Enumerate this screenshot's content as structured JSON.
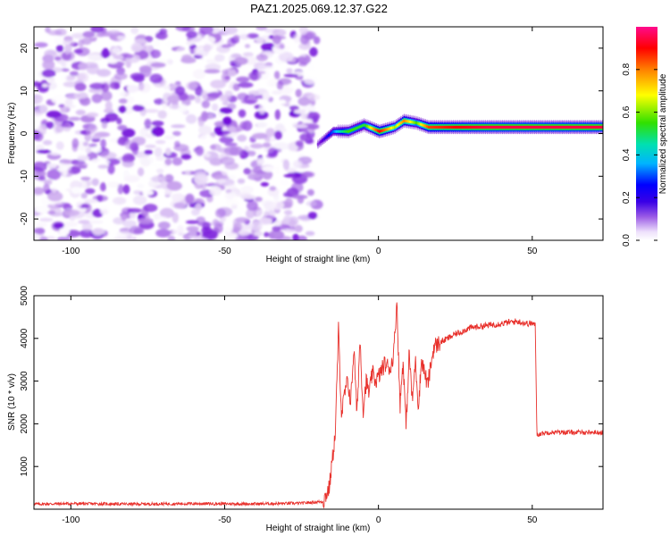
{
  "title": "PAZ1.2025.069.12.37.G22",
  "chart_data": [
    {
      "type": "heatmap",
      "xlabel": "Height of straight line (km)",
      "ylabel": "Frequency (Hz)",
      "xlim": [
        -112,
        73
      ],
      "ylim": [
        -25,
        25
      ],
      "xticks": [
        -100,
        -50,
        0,
        50
      ],
      "yticks": [
        -20,
        -10,
        0,
        10,
        20
      ],
      "colorbar": {
        "label": "Normalized spectral amplitude",
        "range": [
          0.0,
          1.0
        ],
        "ticks": [
          "0.0",
          "0.2",
          "0.4",
          "0.6",
          "0.8"
        ],
        "colormap": [
          "#ffffff",
          "#b07be6",
          "#6a00d8",
          "#0000ff",
          "#00c8ff",
          "#00e08a",
          "#38e000",
          "#ffff00",
          "#ff8000",
          "#ff0000",
          "#ff0080"
        ]
      },
      "noise_region": {
        "x": [
          -112,
          -20
        ],
        "frequency": [
          -25,
          25
        ],
        "amplitude": [
          0.0,
          0.2
        ]
      },
      "signal_ridge": [
        {
          "x": -20,
          "frequency": -2.5,
          "amplitude": 0.15
        },
        {
          "x": -15,
          "frequency": 0.5,
          "amplitude": 0.35
        },
        {
          "x": -10,
          "frequency": 0.5,
          "amplitude": 0.6
        },
        {
          "x": -5,
          "frequency": 2.0,
          "amplitude": 0.55
        },
        {
          "x": 0,
          "frequency": 0.5,
          "amplitude": 0.9
        },
        {
          "x": 5,
          "frequency": 1.5,
          "amplitude": 0.65
        },
        {
          "x": 8,
          "frequency": 3.0,
          "amplitude": 0.8
        },
        {
          "x": 12,
          "frequency": 2.5,
          "amplitude": 0.6
        },
        {
          "x": 16,
          "frequency": 1.5,
          "amplitude": 0.85
        },
        {
          "x": 25,
          "frequency": 1.5,
          "amplitude": 0.9
        },
        {
          "x": 35,
          "frequency": 1.5,
          "amplitude": 0.95
        },
        {
          "x": 45,
          "frequency": 1.5,
          "amplitude": 0.95
        },
        {
          "x": 51,
          "frequency": 1.5,
          "amplitude": 0.95
        },
        {
          "x": 73,
          "frequency": 1.5,
          "amplitude": 0.95
        }
      ]
    },
    {
      "type": "line",
      "xlabel": "Height of straight line (km)",
      "ylabel": "SNR (10 * v/v)",
      "xlim": [
        -112,
        73
      ],
      "ylim": [
        0,
        5000
      ],
      "xticks": [
        -100,
        -50,
        0,
        50
      ],
      "yticks": [
        1000,
        2000,
        3000,
        4000,
        5000
      ],
      "color": "#e8312c",
      "series": [
        {
          "x": [
            -112,
            -100,
            -80,
            -60,
            -40,
            -25,
            -18,
            -16,
            -14,
            -13,
            -12,
            -11,
            -10,
            -9,
            -8,
            -7,
            -6,
            -5,
            -4,
            -3,
            -2,
            -1,
            0,
            2,
            4,
            5,
            6,
            7,
            8,
            9,
            10,
            11,
            12,
            13,
            14,
            16,
            18,
            20,
            25,
            30,
            35,
            40,
            45,
            48,
            50,
            51,
            51.5,
            55,
            60,
            65,
            70,
            73
          ],
          "y": [
            120,
            130,
            120,
            130,
            125,
            140,
            180,
            500,
            1800,
            4200,
            2200,
            2700,
            3000,
            2500,
            3800,
            2200,
            4000,
            2300,
            3000,
            2700,
            3200,
            3000,
            3100,
            3400,
            3300,
            3700,
            4900,
            2400,
            3500,
            1900,
            3700,
            2500,
            3500,
            2400,
            3500,
            2900,
            3800,
            3900,
            4100,
            4250,
            4300,
            4350,
            4400,
            4350,
            4350,
            4300,
            1750,
            1800,
            1800,
            1800,
            1800,
            1800
          ]
        }
      ]
    }
  ]
}
